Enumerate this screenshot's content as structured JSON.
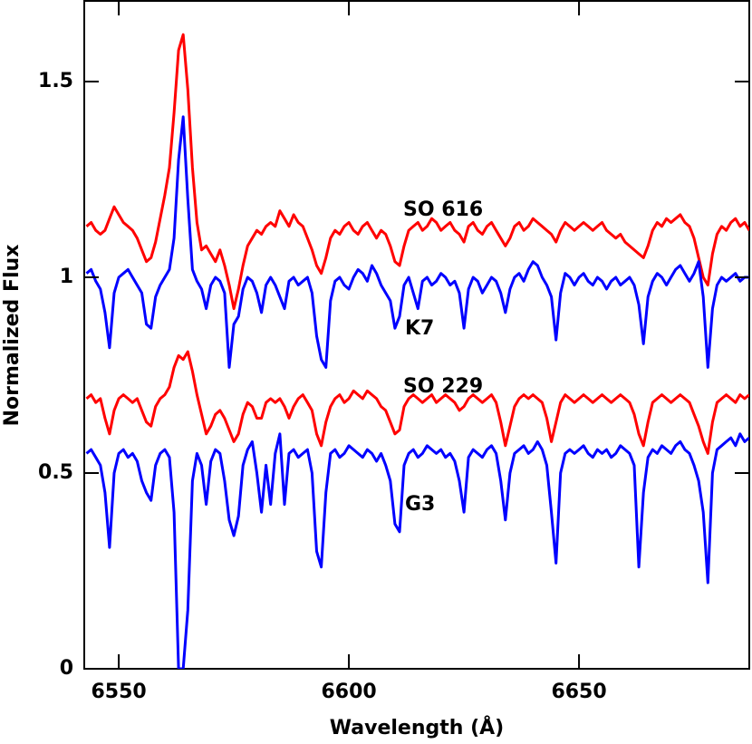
{
  "chart_data": {
    "type": "line",
    "x_label": "Wavelength (Å)",
    "y_label": "Normalized Flux",
    "xlim": [
      6542.5,
      6687
    ],
    "ylim": [
      0,
      1.706
    ],
    "xticks": [
      6550,
      6600,
      6650
    ],
    "yticks": [
      0,
      0.5,
      1,
      1.5
    ],
    "annotations": [
      "SO 616",
      "K7",
      "SO 229",
      "G3"
    ],
    "x": [
      6543,
      6544,
      6545,
      6546,
      6547,
      6548,
      6549,
      6550,
      6551,
      6552,
      6553,
      6554,
      6555,
      6556,
      6557,
      6558,
      6559,
      6560,
      6561,
      6562,
      6563,
      6564,
      6565,
      6566,
      6567,
      6568,
      6569,
      6570,
      6571,
      6572,
      6573,
      6574,
      6575,
      6576,
      6577,
      6578,
      6579,
      6580,
      6581,
      6582,
      6583,
      6584,
      6585,
      6586,
      6587,
      6588,
      6589,
      6590,
      6591,
      6592,
      6593,
      6594,
      6595,
      6596,
      6597,
      6598,
      6599,
      6600,
      6601,
      6602,
      6603,
      6604,
      6605,
      6606,
      6607,
      6608,
      6609,
      6610,
      6611,
      6612,
      6613,
      6614,
      6615,
      6616,
      6617,
      6618,
      6619,
      6620,
      6621,
      6622,
      6623,
      6624,
      6625,
      6626,
      6627,
      6628,
      6629,
      6630,
      6631,
      6632,
      6633,
      6634,
      6635,
      6636,
      6637,
      6638,
      6639,
      6640,
      6641,
      6642,
      6643,
      6644,
      6645,
      6646,
      6647,
      6648,
      6649,
      6650,
      6651,
      6652,
      6653,
      6654,
      6655,
      6656,
      6657,
      6658,
      6659,
      6660,
      6661,
      6662,
      6663,
      6664,
      6665,
      6666,
      6667,
      6668,
      6669,
      6670,
      6671,
      6672,
      6673,
      6674,
      6675,
      6676,
      6677,
      6678,
      6679,
      6680,
      6681,
      6682,
      6683,
      6684,
      6685,
      6686,
      6687
    ],
    "series": [
      {
        "color": "#ff0000",
        "values": [
          1.13,
          1.14,
          1.12,
          1.11,
          1.12,
          1.15,
          1.18,
          1.16,
          1.14,
          1.13,
          1.12,
          1.1,
          1.07,
          1.04,
          1.05,
          1.09,
          1.15,
          1.21,
          1.28,
          1.42,
          1.58,
          1.62,
          1.48,
          1.28,
          1.14,
          1.07,
          1.08,
          1.06,
          1.04,
          1.07,
          1.03,
          0.98,
          0.92,
          0.97,
          1.03,
          1.08,
          1.1,
          1.12,
          1.11,
          1.13,
          1.14,
          1.13,
          1.17,
          1.15,
          1.13,
          1.16,
          1.14,
          1.13,
          1.1,
          1.07,
          1.03,
          1.01,
          1.05,
          1.1,
          1.12,
          1.11,
          1.13,
          1.14,
          1.12,
          1.11,
          1.13,
          1.14,
          1.12,
          1.1,
          1.12,
          1.11,
          1.08,
          1.04,
          1.03,
          1.08,
          1.12,
          1.13,
          1.14,
          1.12,
          1.13,
          1.15,
          1.14,
          1.12,
          1.13,
          1.14,
          1.12,
          1.11,
          1.09,
          1.13,
          1.14,
          1.12,
          1.11,
          1.13,
          1.14,
          1.12,
          1.1,
          1.08,
          1.1,
          1.13,
          1.14,
          1.12,
          1.13,
          1.15,
          1.14,
          1.13,
          1.12,
          1.11,
          1.09,
          1.12,
          1.14,
          1.13,
          1.12,
          1.13,
          1.14,
          1.13,
          1.12,
          1.13,
          1.14,
          1.12,
          1.11,
          1.1,
          1.11,
          1.09,
          1.08,
          1.07,
          1.06,
          1.05,
          1.08,
          1.12,
          1.14,
          1.13,
          1.15,
          1.14,
          1.15,
          1.16,
          1.14,
          1.13,
          1.1,
          1.05,
          1.0,
          0.98,
          1.06,
          1.11,
          1.13,
          1.12,
          1.14,
          1.15,
          1.13,
          1.14,
          1.12
        ]
      },
      {
        "color": "#0000ff",
        "values": [
          1.01,
          1.02,
          0.99,
          0.97,
          0.91,
          0.82,
          0.96,
          1.0,
          1.01,
          1.02,
          1.0,
          0.98,
          0.96,
          0.88,
          0.87,
          0.95,
          0.98,
          1.0,
          1.02,
          1.1,
          1.3,
          1.41,
          1.2,
          1.02,
          0.99,
          0.97,
          0.92,
          0.98,
          1.0,
          0.99,
          0.96,
          0.77,
          0.88,
          0.9,
          0.97,
          1.0,
          0.99,
          0.96,
          0.91,
          0.98,
          1.0,
          0.98,
          0.95,
          0.92,
          0.99,
          1.0,
          0.98,
          0.99,
          1.0,
          0.96,
          0.85,
          0.79,
          0.77,
          0.94,
          0.99,
          1.0,
          0.98,
          0.97,
          1.0,
          1.02,
          1.01,
          0.99,
          1.03,
          1.01,
          0.98,
          0.96,
          0.94,
          0.87,
          0.9,
          0.98,
          1.0,
          0.96,
          0.92,
          0.99,
          1.0,
          0.98,
          0.99,
          1.01,
          1.0,
          0.98,
          0.99,
          0.96,
          0.87,
          0.97,
          1.0,
          0.99,
          0.96,
          0.98,
          1.0,
          0.99,
          0.96,
          0.91,
          0.97,
          1.0,
          1.01,
          0.99,
          1.02,
          1.04,
          1.03,
          1.0,
          0.98,
          0.95,
          0.84,
          0.96,
          1.01,
          1.0,
          0.98,
          1.0,
          1.01,
          0.99,
          0.98,
          1.0,
          0.99,
          0.97,
          0.99,
          1.0,
          0.98,
          0.99,
          1.0,
          0.98,
          0.93,
          0.83,
          0.95,
          0.99,
          1.01,
          1.0,
          0.98,
          1.0,
          1.02,
          1.03,
          1.01,
          0.99,
          1.01,
          1.04,
          0.95,
          0.77,
          0.92,
          0.98,
          1.0,
          0.99,
          1.0,
          1.01,
          0.99,
          1.0,
          1.0
        ]
      },
      {
        "color": "#ff0000",
        "values": [
          0.69,
          0.7,
          0.68,
          0.69,
          0.64,
          0.6,
          0.66,
          0.69,
          0.7,
          0.69,
          0.68,
          0.69,
          0.66,
          0.63,
          0.62,
          0.67,
          0.69,
          0.7,
          0.72,
          0.77,
          0.8,
          0.79,
          0.81,
          0.76,
          0.7,
          0.65,
          0.6,
          0.62,
          0.65,
          0.66,
          0.64,
          0.61,
          0.58,
          0.6,
          0.65,
          0.68,
          0.67,
          0.64,
          0.64,
          0.68,
          0.69,
          0.68,
          0.69,
          0.67,
          0.64,
          0.67,
          0.69,
          0.7,
          0.68,
          0.66,
          0.6,
          0.57,
          0.63,
          0.67,
          0.69,
          0.7,
          0.68,
          0.69,
          0.71,
          0.7,
          0.69,
          0.71,
          0.7,
          0.69,
          0.67,
          0.66,
          0.63,
          0.6,
          0.61,
          0.67,
          0.69,
          0.7,
          0.69,
          0.68,
          0.69,
          0.7,
          0.68,
          0.69,
          0.7,
          0.69,
          0.68,
          0.66,
          0.67,
          0.69,
          0.7,
          0.69,
          0.68,
          0.69,
          0.7,
          0.68,
          0.63,
          0.57,
          0.62,
          0.67,
          0.69,
          0.7,
          0.69,
          0.7,
          0.69,
          0.68,
          0.64,
          0.58,
          0.63,
          0.68,
          0.7,
          0.69,
          0.68,
          0.69,
          0.7,
          0.69,
          0.68,
          0.69,
          0.7,
          0.69,
          0.68,
          0.69,
          0.7,
          0.69,
          0.68,
          0.65,
          0.6,
          0.57,
          0.63,
          0.68,
          0.69,
          0.7,
          0.69,
          0.68,
          0.69,
          0.7,
          0.69,
          0.68,
          0.65,
          0.62,
          0.58,
          0.55,
          0.63,
          0.68,
          0.69,
          0.7,
          0.69,
          0.68,
          0.7,
          0.69,
          0.7
        ]
      },
      {
        "color": "#0000ff",
        "values": [
          0.55,
          0.56,
          0.54,
          0.52,
          0.45,
          0.31,
          0.5,
          0.55,
          0.56,
          0.54,
          0.55,
          0.53,
          0.48,
          0.45,
          0.43,
          0.52,
          0.55,
          0.56,
          0.54,
          0.4,
          0.0,
          0.0,
          0.15,
          0.48,
          0.55,
          0.52,
          0.42,
          0.53,
          0.56,
          0.55,
          0.48,
          0.38,
          0.34,
          0.39,
          0.52,
          0.56,
          0.58,
          0.5,
          0.4,
          0.52,
          0.42,
          0.55,
          0.6,
          0.42,
          0.55,
          0.56,
          0.54,
          0.55,
          0.56,
          0.5,
          0.3,
          0.26,
          0.45,
          0.55,
          0.56,
          0.54,
          0.55,
          0.57,
          0.56,
          0.55,
          0.54,
          0.56,
          0.55,
          0.53,
          0.55,
          0.52,
          0.48,
          0.37,
          0.35,
          0.52,
          0.55,
          0.56,
          0.54,
          0.55,
          0.57,
          0.56,
          0.55,
          0.56,
          0.54,
          0.55,
          0.53,
          0.48,
          0.4,
          0.54,
          0.56,
          0.55,
          0.54,
          0.56,
          0.57,
          0.55,
          0.48,
          0.38,
          0.5,
          0.55,
          0.56,
          0.57,
          0.55,
          0.56,
          0.58,
          0.56,
          0.52,
          0.4,
          0.27,
          0.5,
          0.55,
          0.56,
          0.55,
          0.56,
          0.57,
          0.55,
          0.54,
          0.56,
          0.55,
          0.56,
          0.54,
          0.55,
          0.57,
          0.56,
          0.55,
          0.52,
          0.26,
          0.45,
          0.54,
          0.56,
          0.55,
          0.57,
          0.56,
          0.55,
          0.57,
          0.58,
          0.56,
          0.55,
          0.52,
          0.48,
          0.4,
          0.22,
          0.5,
          0.56,
          0.57,
          0.58,
          0.59,
          0.57,
          0.6,
          0.58,
          0.59
        ]
      }
    ]
  }
}
